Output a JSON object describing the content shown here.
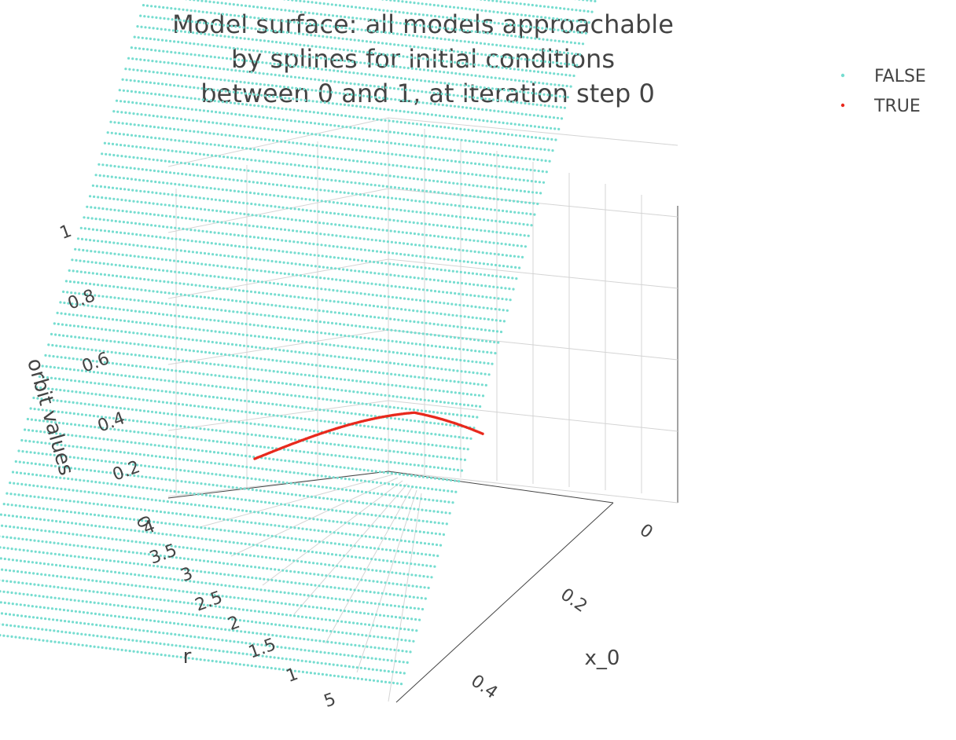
{
  "chart_data": {
    "type": "scatter3d",
    "title_lines": [
      "Model surface: all models approachable",
      "by splines for initial conditions",
      "between 0 and 1, at iteration step 0"
    ],
    "axes": {
      "x": {
        "label": "x_0",
        "ticks": [
          "0",
          "0.2",
          "0.4"
        ]
      },
      "y": {
        "label": "r",
        "ticks": [
          "4",
          "3.5",
          "3",
          "2.5",
          "2",
          "1.5",
          "1",
          "5"
        ]
      },
      "z": {
        "label": "orbit values",
        "ticks": [
          "0",
          "0.2",
          "0.4",
          "0.6",
          "0.8",
          "1"
        ]
      }
    },
    "legend": {
      "placement": "top-right",
      "items": [
        {
          "label": "FALSE",
          "color": "#76ddd0"
        },
        {
          "label": "TRUE",
          "color": "#e8291d"
        }
      ]
    },
    "series": [
      {
        "name": "FALSE",
        "color": "#76ddd0",
        "description_surface": "z = 1 - x_0 for x_0 in [0,1]"
      },
      {
        "name": "TRUE",
        "color": "#e8291d"
      }
    ],
    "grid": true
  }
}
